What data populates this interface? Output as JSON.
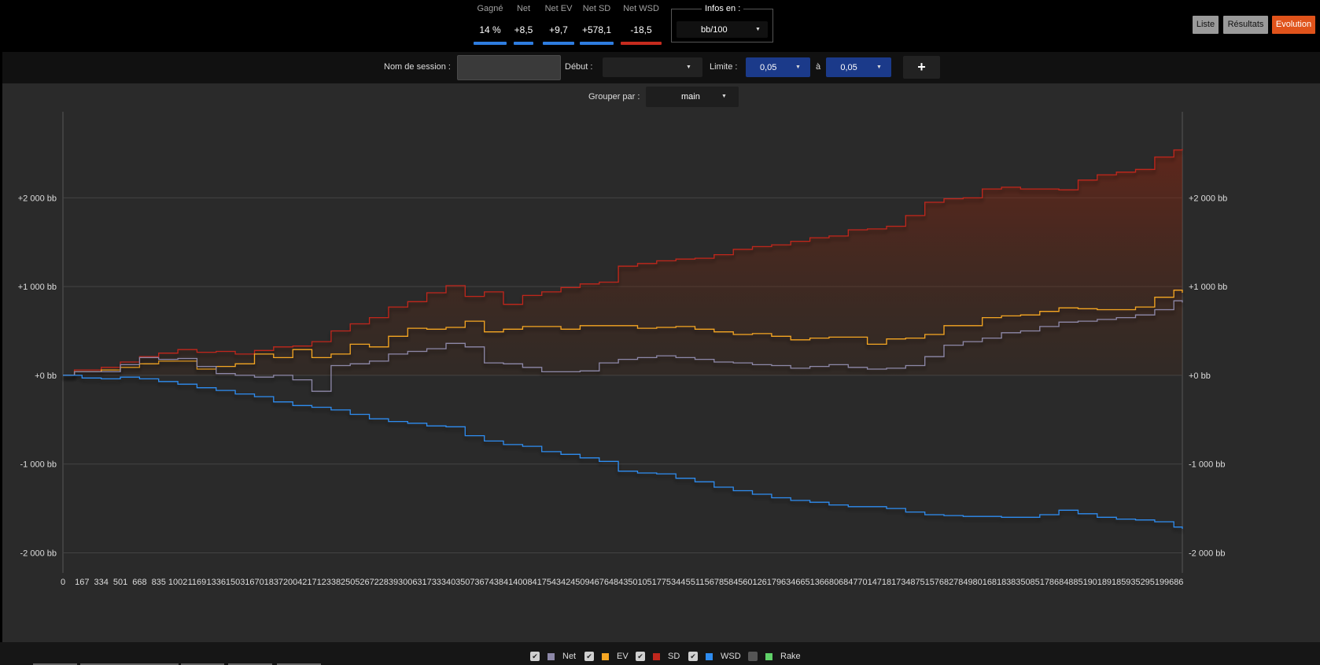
{
  "stats": [
    {
      "label": "Gagné",
      "value": "14 %",
      "color": "#2e7de0"
    },
    {
      "label": "Net",
      "value": "+8,5",
      "color": "#2e7de0"
    },
    {
      "label": "Net EV",
      "value": "+9,7",
      "color": "#2e7de0"
    },
    {
      "label": "Net SD",
      "value": "+578,1",
      "color": "#2e7de0"
    },
    {
      "label": "Net WSD",
      "value": "-18,5",
      "color": "#c62b1e"
    }
  ],
  "infos": {
    "legend": "Infos en :",
    "selected": "bb/100"
  },
  "view_buttons": {
    "liste": "Liste",
    "resultats": "Résultats",
    "evolution": "Evolution"
  },
  "filters": {
    "session_label": "Nom de session :",
    "session_value": "",
    "debut_label": "Début :",
    "debut_value": "",
    "limite_label": "Limite :",
    "limite_from": "0,05",
    "a_label": "à",
    "limite_to": "0,05",
    "add_label": "+"
  },
  "group": {
    "label": "Grouper par :",
    "selected": "main"
  },
  "legend": [
    {
      "name": "Net",
      "checked": true,
      "color": "#8d88a8"
    },
    {
      "name": "EV",
      "checked": true,
      "color": "#f5a623"
    },
    {
      "name": "SD",
      "checked": true,
      "color": "#c0271d"
    },
    {
      "name": "WSD",
      "checked": true,
      "color": "#2e8cf0"
    },
    {
      "name": "Rake",
      "checked": false,
      "color": "#5fd068"
    }
  ],
  "chart_data": {
    "type": "line",
    "ylim": [
      -2200,
      2970
    ],
    "xlim": [
      0,
      9760
    ],
    "y_ticks": [
      {
        "value": 2000,
        "label": "+2 000 bb"
      },
      {
        "value": 1000,
        "label": "+1 000 bb"
      },
      {
        "value": 0,
        "label": "+0 bb"
      },
      {
        "value": -1000,
        "label": "-1 000 bb"
      },
      {
        "value": -2000,
        "label": "-2 000 bb"
      }
    ],
    "x_ticks": [
      0,
      167,
      334,
      501,
      668,
      835,
      1002,
      1169,
      1336,
      1503,
      1670,
      1837,
      2004,
      2171,
      2338,
      2505,
      2672,
      2839,
      3006,
      3173,
      3340,
      3507,
      3674,
      3841,
      4008,
      4175,
      4342,
      4509,
      4676,
      4843,
      5010,
      5177,
      5344,
      5511,
      5678,
      5845,
      6012,
      6179,
      6346,
      6513,
      6680,
      6847,
      7014,
      7181,
      7348,
      7515,
      7682,
      7849,
      8016,
      8183,
      8350,
      8517,
      8684,
      8851,
      9018,
      9185,
      9352,
      9519,
      9686
    ],
    "grid": true,
    "series": [
      {
        "name": "SD",
        "color": "#c0271d",
        "fill": true,
        "points": [
          [
            0,
            0
          ],
          [
            100,
            60
          ],
          [
            334,
            90
          ],
          [
            501,
            150
          ],
          [
            668,
            210
          ],
          [
            835,
            250
          ],
          [
            1002,
            290
          ],
          [
            1169,
            260
          ],
          [
            1336,
            270
          ],
          [
            1503,
            240
          ],
          [
            1670,
            280
          ],
          [
            1837,
            320
          ],
          [
            2004,
            330
          ],
          [
            2171,
            380
          ],
          [
            2338,
            500
          ],
          [
            2505,
            580
          ],
          [
            2672,
            650
          ],
          [
            2839,
            770
          ],
          [
            3006,
            830
          ],
          [
            3173,
            930
          ],
          [
            3340,
            1010
          ],
          [
            3507,
            890
          ],
          [
            3674,
            940
          ],
          [
            3841,
            800
          ],
          [
            4008,
            900
          ],
          [
            4175,
            940
          ],
          [
            4342,
            990
          ],
          [
            4509,
            1030
          ],
          [
            4676,
            1050
          ],
          [
            4843,
            1230
          ],
          [
            5010,
            1260
          ],
          [
            5177,
            1290
          ],
          [
            5344,
            1310
          ],
          [
            5511,
            1320
          ],
          [
            5678,
            1360
          ],
          [
            5845,
            1420
          ],
          [
            6012,
            1450
          ],
          [
            6179,
            1470
          ],
          [
            6346,
            1510
          ],
          [
            6513,
            1550
          ],
          [
            6680,
            1570
          ],
          [
            6847,
            1640
          ],
          [
            7014,
            1650
          ],
          [
            7181,
            1680
          ],
          [
            7348,
            1800
          ],
          [
            7515,
            1950
          ],
          [
            7682,
            1990
          ],
          [
            7849,
            2000
          ],
          [
            8016,
            2100
          ],
          [
            8183,
            2120
          ],
          [
            8350,
            2100
          ],
          [
            8517,
            2100
          ],
          [
            8684,
            2090
          ],
          [
            8851,
            2200
          ],
          [
            9018,
            2260
          ],
          [
            9185,
            2290
          ],
          [
            9352,
            2320
          ],
          [
            9519,
            2460
          ],
          [
            9686,
            2540
          ],
          [
            9760,
            2550
          ]
        ]
      },
      {
        "name": "EV",
        "color": "#f5a623",
        "fill": false,
        "points": [
          [
            0,
            0
          ],
          [
            100,
            40
          ],
          [
            334,
            60
          ],
          [
            501,
            90
          ],
          [
            668,
            130
          ],
          [
            835,
            160
          ],
          [
            1002,
            160
          ],
          [
            1169,
            70
          ],
          [
            1336,
            100
          ],
          [
            1503,
            130
          ],
          [
            1670,
            240
          ],
          [
            1837,
            200
          ],
          [
            2004,
            290
          ],
          [
            2171,
            200
          ],
          [
            2338,
            240
          ],
          [
            2505,
            350
          ],
          [
            2672,
            320
          ],
          [
            2839,
            440
          ],
          [
            3006,
            530
          ],
          [
            3173,
            520
          ],
          [
            3340,
            540
          ],
          [
            3507,
            610
          ],
          [
            3674,
            490
          ],
          [
            3841,
            520
          ],
          [
            4008,
            550
          ],
          [
            4175,
            550
          ],
          [
            4342,
            520
          ],
          [
            4509,
            560
          ],
          [
            4676,
            560
          ],
          [
            4843,
            560
          ],
          [
            5010,
            530
          ],
          [
            5177,
            540
          ],
          [
            5344,
            550
          ],
          [
            5511,
            520
          ],
          [
            5678,
            490
          ],
          [
            5845,
            460
          ],
          [
            6012,
            470
          ],
          [
            6179,
            440
          ],
          [
            6346,
            400
          ],
          [
            6513,
            420
          ],
          [
            6680,
            430
          ],
          [
            6847,
            430
          ],
          [
            7014,
            350
          ],
          [
            7181,
            410
          ],
          [
            7348,
            420
          ],
          [
            7515,
            460
          ],
          [
            7682,
            560
          ],
          [
            7849,
            560
          ],
          [
            8016,
            650
          ],
          [
            8183,
            670
          ],
          [
            8350,
            680
          ],
          [
            8517,
            720
          ],
          [
            8684,
            760
          ],
          [
            8851,
            750
          ],
          [
            9018,
            740
          ],
          [
            9185,
            740
          ],
          [
            9352,
            770
          ],
          [
            9519,
            880
          ],
          [
            9686,
            960
          ],
          [
            9760,
            930
          ]
        ]
      },
      {
        "name": "Net",
        "color": "#8d88a8",
        "fill": false,
        "points": [
          [
            0,
            0
          ],
          [
            100,
            40
          ],
          [
            334,
            40
          ],
          [
            501,
            120
          ],
          [
            668,
            200
          ],
          [
            835,
            180
          ],
          [
            1002,
            190
          ],
          [
            1169,
            100
          ],
          [
            1336,
            20
          ],
          [
            1503,
            0
          ],
          [
            1670,
            -20
          ],
          [
            1837,
            0
          ],
          [
            2004,
            -50
          ],
          [
            2171,
            -180
          ],
          [
            2338,
            110
          ],
          [
            2505,
            130
          ],
          [
            2672,
            160
          ],
          [
            2839,
            240
          ],
          [
            3006,
            270
          ],
          [
            3173,
            300
          ],
          [
            3340,
            360
          ],
          [
            3507,
            320
          ],
          [
            3674,
            140
          ],
          [
            3841,
            130
          ],
          [
            4008,
            90
          ],
          [
            4175,
            40
          ],
          [
            4342,
            40
          ],
          [
            4509,
            50
          ],
          [
            4676,
            140
          ],
          [
            4843,
            180
          ],
          [
            5010,
            200
          ],
          [
            5177,
            220
          ],
          [
            5344,
            200
          ],
          [
            5511,
            180
          ],
          [
            5678,
            150
          ],
          [
            5845,
            140
          ],
          [
            6012,
            120
          ],
          [
            6179,
            110
          ],
          [
            6346,
            80
          ],
          [
            6513,
            100
          ],
          [
            6680,
            120
          ],
          [
            6847,
            90
          ],
          [
            7014,
            70
          ],
          [
            7181,
            80
          ],
          [
            7348,
            110
          ],
          [
            7515,
            210
          ],
          [
            7682,
            340
          ],
          [
            7849,
            380
          ],
          [
            8016,
            420
          ],
          [
            8183,
            480
          ],
          [
            8350,
            500
          ],
          [
            8517,
            550
          ],
          [
            8684,
            600
          ],
          [
            8851,
            610
          ],
          [
            9018,
            630
          ],
          [
            9185,
            650
          ],
          [
            9352,
            680
          ],
          [
            9519,
            740
          ],
          [
            9686,
            840
          ],
          [
            9760,
            820
          ]
        ]
      },
      {
        "name": "WSD",
        "color": "#2e8cf0",
        "fill": false,
        "points": [
          [
            0,
            0
          ],
          [
            167,
            -30
          ],
          [
            334,
            -40
          ],
          [
            501,
            -20
          ],
          [
            668,
            -40
          ],
          [
            835,
            -70
          ],
          [
            1002,
            -100
          ],
          [
            1169,
            -140
          ],
          [
            1336,
            -170
          ],
          [
            1503,
            -210
          ],
          [
            1670,
            -240
          ],
          [
            1837,
            -300
          ],
          [
            2004,
            -340
          ],
          [
            2171,
            -360
          ],
          [
            2338,
            -390
          ],
          [
            2505,
            -440
          ],
          [
            2672,
            -490
          ],
          [
            2839,
            -520
          ],
          [
            3006,
            -540
          ],
          [
            3173,
            -570
          ],
          [
            3340,
            -580
          ],
          [
            3507,
            -680
          ],
          [
            3674,
            -740
          ],
          [
            3841,
            -780
          ],
          [
            4008,
            -800
          ],
          [
            4175,
            -860
          ],
          [
            4342,
            -890
          ],
          [
            4509,
            -930
          ],
          [
            4676,
            -970
          ],
          [
            4843,
            -1080
          ],
          [
            5010,
            -1100
          ],
          [
            5177,
            -1110
          ],
          [
            5344,
            -1160
          ],
          [
            5511,
            -1200
          ],
          [
            5678,
            -1260
          ],
          [
            5845,
            -1300
          ],
          [
            6012,
            -1340
          ],
          [
            6179,
            -1380
          ],
          [
            6346,
            -1410
          ],
          [
            6513,
            -1430
          ],
          [
            6680,
            -1460
          ],
          [
            6847,
            -1480
          ],
          [
            7014,
            -1480
          ],
          [
            7181,
            -1500
          ],
          [
            7348,
            -1540
          ],
          [
            7515,
            -1570
          ],
          [
            7682,
            -1580
          ],
          [
            7849,
            -1590
          ],
          [
            8016,
            -1590
          ],
          [
            8183,
            -1600
          ],
          [
            8350,
            -1600
          ],
          [
            8517,
            -1570
          ],
          [
            8684,
            -1520
          ],
          [
            8851,
            -1560
          ],
          [
            9018,
            -1600
          ],
          [
            9185,
            -1620
          ],
          [
            9352,
            -1630
          ],
          [
            9519,
            -1650
          ],
          [
            9686,
            -1710
          ],
          [
            9760,
            -1730
          ]
        ]
      }
    ]
  }
}
